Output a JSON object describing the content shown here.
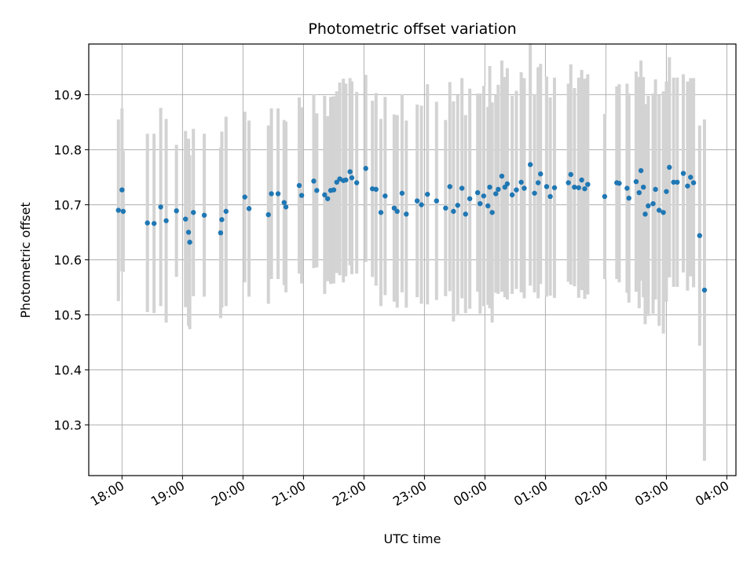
{
  "chart_data": {
    "type": "scatter",
    "title": "Photometric offset variation",
    "xlabel": "UTC time",
    "ylabel": "Photometric offset",
    "x_unit": "UTC time (hours, continuing past midnight as 24+)",
    "xlim": [
      17.45,
      28.15
    ],
    "ylim": [
      10.208,
      10.992
    ],
    "grid": true,
    "point_color": "#1f77b4",
    "errorbar_color": "#d3d3d3",
    "xticks": [
      {
        "value": 18,
        "label": "18:00"
      },
      {
        "value": 19,
        "label": "19:00"
      },
      {
        "value": 20,
        "label": "20:00"
      },
      {
        "value": 21,
        "label": "21:00"
      },
      {
        "value": 22,
        "label": "22:00"
      },
      {
        "value": 23,
        "label": "23:00"
      },
      {
        "value": 24,
        "label": "00:00"
      },
      {
        "value": 25,
        "label": "01:00"
      },
      {
        "value": 26,
        "label": "02:00"
      },
      {
        "value": 27,
        "label": "03:00"
      },
      {
        "value": 28,
        "label": "04:00"
      }
    ],
    "yticks": [
      {
        "value": 10.3,
        "label": "10.3"
      },
      {
        "value": 10.4,
        "label": "10.4"
      },
      {
        "value": 10.5,
        "label": "10.5"
      },
      {
        "value": 10.6,
        "label": "10.6"
      },
      {
        "value": 10.7,
        "label": "10.7"
      },
      {
        "value": 10.8,
        "label": "10.8"
      },
      {
        "value": 10.9,
        "label": "10.9"
      }
    ],
    "points": [
      [
        17.94,
        10.69,
        0.165
      ],
      [
        18.0,
        10.727,
        0.148
      ],
      [
        18.02,
        10.688,
        0.11
      ],
      [
        18.42,
        10.667,
        0.162
      ],
      [
        18.53,
        10.666,
        0.163
      ],
      [
        18.64,
        10.696,
        0.18
      ],
      [
        18.73,
        10.671,
        0.185
      ],
      [
        18.9,
        10.689,
        0.12
      ],
      [
        19.05,
        10.674,
        0.16
      ],
      [
        19.1,
        10.65,
        0.17
      ],
      [
        19.12,
        10.632,
        0.158
      ],
      [
        19.18,
        10.686,
        0.152
      ],
      [
        19.36,
        10.681,
        0.148
      ],
      [
        19.63,
        10.649,
        0.155
      ],
      [
        19.65,
        10.673,
        0.16
      ],
      [
        19.72,
        10.688,
        0.172
      ],
      [
        20.03,
        10.714,
        0.155
      ],
      [
        20.1,
        10.693,
        0.16
      ],
      [
        20.42,
        10.682,
        0.162
      ],
      [
        20.47,
        10.72,
        0.155
      ],
      [
        20.58,
        10.72,
        0.155
      ],
      [
        20.68,
        10.704,
        0.15
      ],
      [
        20.71,
        10.696,
        0.155
      ],
      [
        20.93,
        10.735,
        0.16
      ],
      [
        20.97,
        10.717,
        0.16
      ],
      [
        21.17,
        10.743,
        0.158
      ],
      [
        21.22,
        10.726,
        0.14
      ],
      [
        21.35,
        10.718,
        0.18
      ],
      [
        21.4,
        10.711,
        0.15
      ],
      [
        21.45,
        10.726,
        0.17
      ],
      [
        21.5,
        10.727,
        0.17
      ],
      [
        21.55,
        10.741,
        0.165
      ],
      [
        21.6,
        10.747,
        0.175
      ],
      [
        21.66,
        10.744,
        0.185
      ],
      [
        21.7,
        10.745,
        0.175
      ],
      [
        21.77,
        10.76,
        0.17
      ],
      [
        21.8,
        10.749,
        0.175
      ],
      [
        21.88,
        10.74,
        0.165
      ],
      [
        22.03,
        10.766,
        0.17
      ],
      [
        22.14,
        10.729,
        0.16
      ],
      [
        22.2,
        10.728,
        0.175
      ],
      [
        22.28,
        10.686,
        0.17
      ],
      [
        22.35,
        10.716,
        0.18
      ],
      [
        22.5,
        10.694,
        0.17
      ],
      [
        22.55,
        10.688,
        0.175
      ],
      [
        22.63,
        10.721,
        0.18
      ],
      [
        22.7,
        10.683,
        0.17
      ],
      [
        22.88,
        10.707,
        0.175
      ],
      [
        22.95,
        10.7,
        0.18
      ],
      [
        23.05,
        10.719,
        0.2
      ],
      [
        23.2,
        10.707,
        0.18
      ],
      [
        23.35,
        10.694,
        0.16
      ],
      [
        23.42,
        10.733,
        0.19
      ],
      [
        23.48,
        10.688,
        0.2
      ],
      [
        23.55,
        10.699,
        0.2
      ],
      [
        23.62,
        10.73,
        0.2
      ],
      [
        23.68,
        10.683,
        0.18
      ],
      [
        23.75,
        10.711,
        0.2
      ],
      [
        23.88,
        10.722,
        0.18
      ],
      [
        23.92,
        10.702,
        0.2
      ],
      [
        23.98,
        10.716,
        0.2
      ],
      [
        24.05,
        10.698,
        0.18
      ],
      [
        24.08,
        10.732,
        0.22
      ],
      [
        24.12,
        10.686,
        0.2
      ],
      [
        24.18,
        10.72,
        0.18
      ],
      [
        24.22,
        10.728,
        0.19
      ],
      [
        24.28,
        10.752,
        0.21
      ],
      [
        24.33,
        10.732,
        0.2
      ],
      [
        24.37,
        10.738,
        0.21
      ],
      [
        24.45,
        10.718,
        0.18
      ],
      [
        24.52,
        10.727,
        0.18
      ],
      [
        24.6,
        10.741,
        0.2
      ],
      [
        24.65,
        10.73,
        0.2
      ],
      [
        24.75,
        10.773,
        0.22
      ],
      [
        24.82,
        10.721,
        0.18
      ],
      [
        24.88,
        10.74,
        0.21
      ],
      [
        24.92,
        10.756,
        0.2
      ],
      [
        25.02,
        10.733,
        0.2
      ],
      [
        25.08,
        10.715,
        0.18
      ],
      [
        25.15,
        10.731,
        0.2
      ],
      [
        25.38,
        10.74,
        0.18
      ],
      [
        25.42,
        10.755,
        0.2
      ],
      [
        25.48,
        10.732,
        0.18
      ],
      [
        25.55,
        10.731,
        0.2
      ],
      [
        25.6,
        10.745,
        0.2
      ],
      [
        25.65,
        10.729,
        0.2
      ],
      [
        25.7,
        10.737,
        0.2
      ],
      [
        25.98,
        10.715,
        0.15
      ],
      [
        26.18,
        10.74,
        0.175
      ],
      [
        26.22,
        10.739,
        0.18
      ],
      [
        26.35,
        10.73,
        0.19
      ],
      [
        26.38,
        10.712,
        0.19
      ],
      [
        26.5,
        10.742,
        0.2
      ],
      [
        26.55,
        10.722,
        0.21
      ],
      [
        26.58,
        10.762,
        0.2
      ],
      [
        26.62,
        10.732,
        0.2
      ],
      [
        26.65,
        10.683,
        0.2
      ],
      [
        26.7,
        10.698,
        0.2
      ],
      [
        26.78,
        10.702,
        0.2
      ],
      [
        26.82,
        10.728,
        0.2
      ],
      [
        26.88,
        10.69,
        0.21
      ],
      [
        26.95,
        10.686,
        0.22
      ],
      [
        27.0,
        10.724,
        0.2
      ],
      [
        27.05,
        10.768,
        0.2
      ],
      [
        27.12,
        10.741,
        0.19
      ],
      [
        27.18,
        10.741,
        0.19
      ],
      [
        27.28,
        10.757,
        0.18
      ],
      [
        27.35,
        10.734,
        0.19
      ],
      [
        27.4,
        10.75,
        0.18
      ],
      [
        27.45,
        10.74,
        0.19
      ],
      [
        27.55,
        10.644,
        0.2
      ],
      [
        27.63,
        10.545,
        0.31
      ]
    ]
  }
}
